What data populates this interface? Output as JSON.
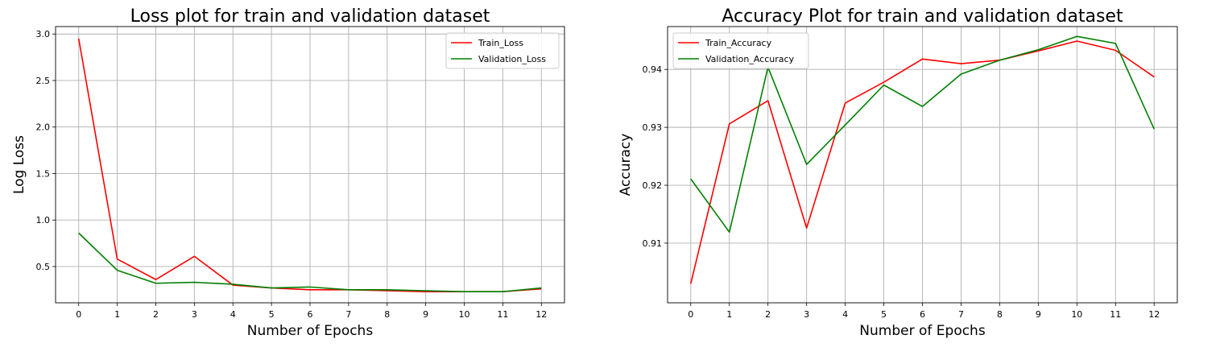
{
  "chart_data": [
    {
      "type": "line",
      "title": "Loss plot for train and validation dataset",
      "xlabel": "Number of Epochs",
      "ylabel": "Log Loss",
      "x": [
        0,
        1,
        2,
        3,
        4,
        5,
        6,
        7,
        8,
        9,
        10,
        11,
        12
      ],
      "xlim": [
        -0.6,
        12.6
      ],
      "ylim": [
        0.11,
        3.08
      ],
      "xticks": [
        0,
        1,
        2,
        3,
        4,
        5,
        6,
        7,
        8,
        9,
        10,
        11,
        12
      ],
      "yticks": [
        0.5,
        1.0,
        1.5,
        2.0,
        2.5,
        3.0
      ],
      "ytick_labels": [
        "0.5",
        "1.0",
        "1.5",
        "2.0",
        "2.5",
        "3.0"
      ],
      "grid": true,
      "legend_position": "top-right",
      "series": [
        {
          "name": "Train_Loss",
          "color": "#ff0000",
          "values": [
            2.95,
            0.58,
            0.36,
            0.61,
            0.3,
            0.27,
            0.25,
            0.25,
            0.24,
            0.23,
            0.23,
            0.23,
            0.26
          ]
        },
        {
          "name": "Validation_Loss",
          "color": "#008000",
          "values": [
            0.86,
            0.46,
            0.32,
            0.33,
            0.31,
            0.27,
            0.28,
            0.25,
            0.25,
            0.24,
            0.23,
            0.23,
            0.27
          ]
        }
      ]
    },
    {
      "type": "line",
      "title": "Accuracy Plot for train and validation dataset",
      "xlabel": "Number of Epochs",
      "ylabel": "Accuracy",
      "x": [
        0,
        1,
        2,
        3,
        4,
        5,
        6,
        7,
        8,
        9,
        10,
        11,
        12
      ],
      "xlim": [
        -0.6,
        12.6
      ],
      "ylim": [
        0.8997,
        0.9474
      ],
      "xticks": [
        0,
        1,
        2,
        3,
        4,
        5,
        6,
        7,
        8,
        9,
        10,
        11,
        12
      ],
      "yticks": [
        0.91,
        0.92,
        0.93,
        0.94
      ],
      "ytick_labels": [
        "0.91",
        "0.92",
        "0.93",
        "0.94"
      ],
      "grid": true,
      "legend_position": "top-left",
      "series": [
        {
          "name": "Train_Accuracy",
          "color": "#ff0000",
          "values": [
            0.903,
            0.9306,
            0.9346,
            0.9126,
            0.9342,
            0.9378,
            0.9418,
            0.941,
            0.9416,
            0.9432,
            0.9449,
            0.9433,
            0.9387
          ]
        },
        {
          "name": "Validation_Accuracy",
          "color": "#008000",
          "values": [
            0.9211,
            0.9119,
            0.9404,
            0.9236,
            0.9304,
            0.9373,
            0.9336,
            0.9392,
            0.9416,
            0.9434,
            0.9457,
            0.9445,
            0.9297
          ]
        }
      ]
    }
  ]
}
